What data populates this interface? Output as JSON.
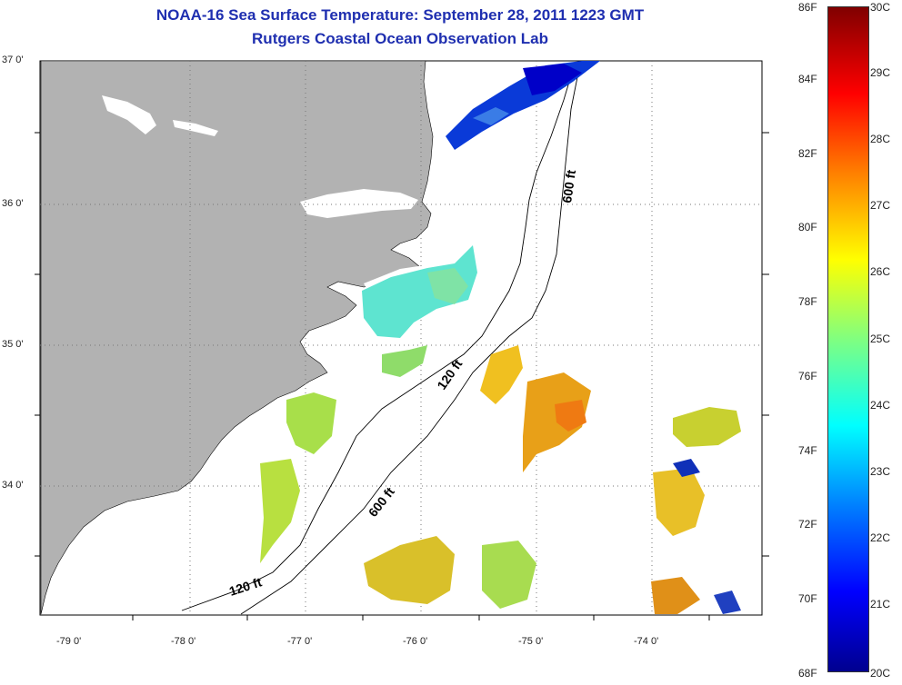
{
  "title_line1": "NOAA-16 Sea Surface Temperature:  September 28, 2011 1223 GMT",
  "title_line2": "Rutgers Coastal Ocean Observation Lab",
  "lat_labels": [
    "37 0'",
    "36 0'",
    "35 0'",
    "34 0'"
  ],
  "lon_labels": [
    "-79 0'",
    "-78 0'",
    "-77 0'",
    "-76 0'",
    "-75 0'",
    "-74 0'"
  ],
  "contours": {
    "c120_a": "120 ft",
    "c120_b": "120 ft",
    "c600_a": "600 ft",
    "c600_b": "600 ft"
  },
  "colorbar": {
    "fahrenheit": [
      "86F",
      "84F",
      "82F",
      "80F",
      "78F",
      "76F",
      "74F",
      "72F",
      "70F",
      "68F"
    ],
    "celsius": [
      "30C",
      "29C",
      "28C",
      "27C",
      "26C",
      "25C",
      "24C",
      "23C",
      "22C",
      "21C",
      "20C"
    ],
    "colors": [
      "#00008f",
      "#0000ff",
      "#0080ff",
      "#00ffff",
      "#80ff80",
      "#ffff00",
      "#ff8000",
      "#ff0000",
      "#800000"
    ]
  },
  "colors": {
    "land": "#b2b2b2",
    "title": "#1f2fb0"
  }
}
